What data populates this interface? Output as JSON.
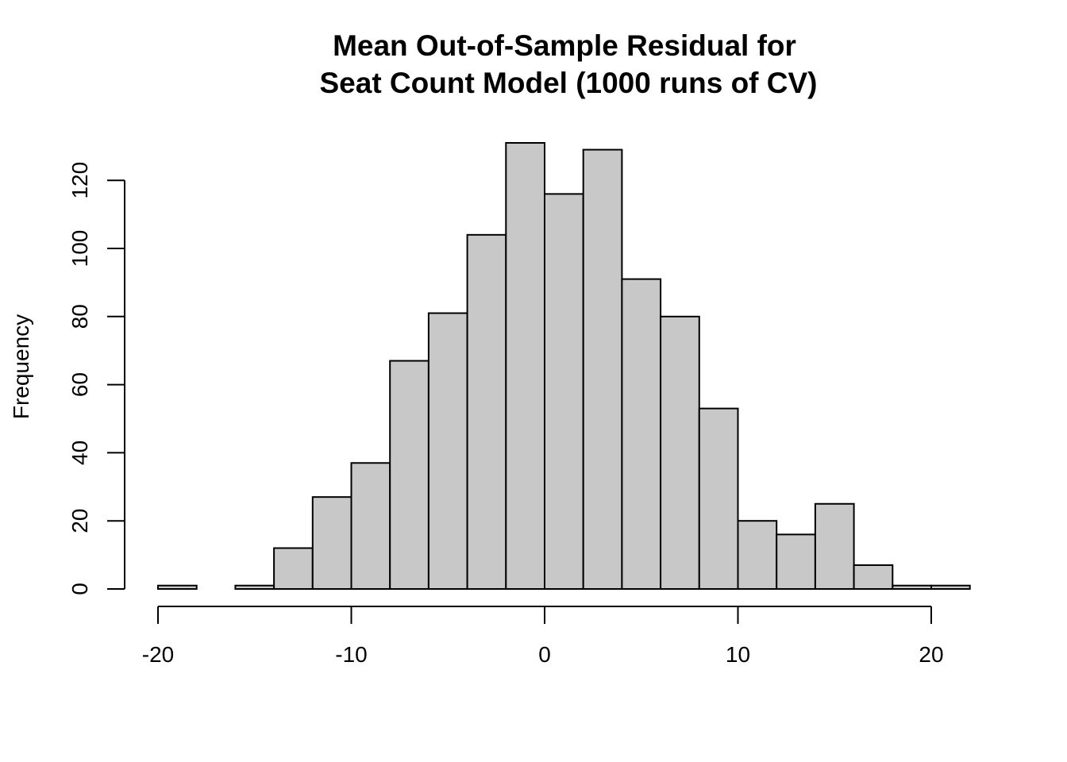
{
  "chart_data": {
    "type": "bar",
    "title": [
      "Mean Out-of-Sample Residual for",
      "Seat Count Model (1000 runs of CV)"
    ],
    "xlabel": "",
    "ylabel": "Frequency",
    "bar_color": "#c8c8c8",
    "border_color": "#000000",
    "bin_edges": [
      -20,
      -18,
      -16,
      -14,
      -12,
      -10,
      -8,
      -6,
      -4,
      -2,
      0,
      2,
      4,
      6,
      8,
      10,
      12,
      14,
      16,
      18,
      20,
      22
    ],
    "values": [
      1,
      0,
      1,
      12,
      27,
      37,
      67,
      81,
      104,
      131,
      116,
      129,
      91,
      80,
      53,
      20,
      16,
      25,
      7,
      1,
      1
    ],
    "x_ticks": [
      -20,
      -10,
      0,
      10,
      20
    ],
    "x_tick_labels": [
      "-20",
      "-10",
      "0",
      "10",
      "20"
    ],
    "y_ticks": [
      0,
      20,
      40,
      60,
      80,
      100,
      120
    ],
    "y_tick_labels": [
      "0",
      "20",
      "40",
      "60",
      "80",
      "100",
      "120"
    ],
    "xlim": [
      -20,
      22
    ],
    "ylim": [
      0,
      131
    ],
    "grid": false,
    "legend": "none"
  }
}
